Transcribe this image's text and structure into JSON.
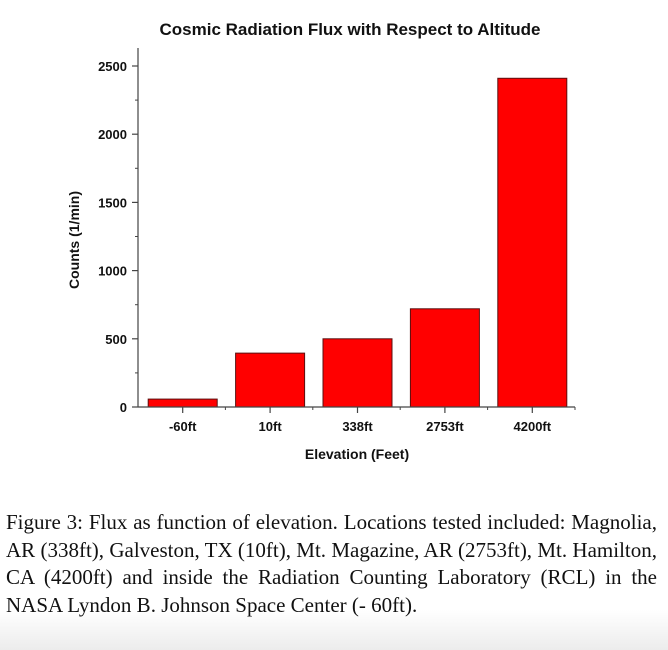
{
  "chart_data": {
    "type": "bar",
    "title": "Cosmic Radiation Flux with Respect to Altitude",
    "xlabel": "Elevation (Feet)",
    "ylabel": "Counts (1/min)",
    "categories": [
      "-60ft",
      "10ft",
      "338ft",
      "2753ft",
      "4200ft"
    ],
    "values": [
      58,
      395,
      500,
      720,
      2410
    ],
    "ylim": [
      0,
      2550
    ],
    "yticks": [
      0,
      500,
      1000,
      1500,
      2000,
      2500
    ],
    "yticks_labels": [
      "0",
      "500",
      "1000",
      "1500",
      "2000",
      "2500"
    ],
    "grid": false,
    "legend": null,
    "bar_color": "#ff0000",
    "bar_edge_color": "#5a1010"
  },
  "figure": {
    "caption": "Figure 3: Flux as function of elevation. Locations tested included: Magnolia, AR (338ft), Galveston, TX (10ft), Mt. Magazine, AR (2753ft), Mt. Hamilton, CA (4200ft) and inside the Radiation Counting Laboratory (RCL) in the NASA Lyndon B. Johnson Space Center (- 60ft)."
  }
}
